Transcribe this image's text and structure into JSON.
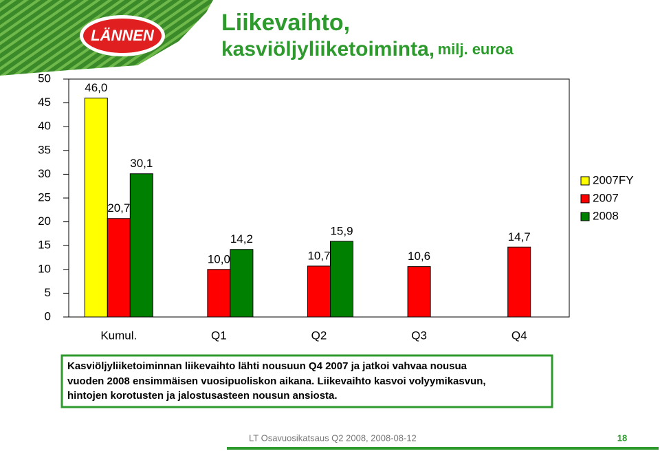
{
  "logo": "LÄNNEN",
  "chart_data": {
    "type": "bar",
    "title": "Liikevaihto,",
    "subtitle": "kasviöljyliiketoiminta,",
    "unit": "milj. euroa",
    "categories": [
      "Kumul.",
      "Q1",
      "Q2",
      "Q3",
      "Q4"
    ],
    "series": [
      {
        "name": "2007FY",
        "color": "#ffff00",
        "values": [
          46.0,
          null,
          null,
          null,
          null
        ],
        "value_labels": [
          "46,0",
          null,
          null,
          null,
          null
        ]
      },
      {
        "name": "2007",
        "color": "#ff0000",
        "values": [
          20.7,
          10.0,
          10.7,
          10.6,
          14.7
        ],
        "value_labels": [
          "20,7",
          "10,0",
          "10,7",
          "10,6",
          "14,7"
        ]
      },
      {
        "name": "2008",
        "color": "#008000",
        "values": [
          30.1,
          14.2,
          15.9,
          null,
          null
        ],
        "value_labels": [
          "30,1",
          "14,2",
          "15,9",
          null,
          null
        ]
      }
    ],
    "ylim": [
      0,
      50
    ],
    "yticks": [
      0,
      5,
      10,
      15,
      20,
      25,
      30,
      35,
      40,
      45,
      50
    ],
    "grid": false,
    "legend": "right"
  },
  "note": [
    "Kasviöljyliiketoiminnan liikevaihto lähti nousuun Q4 2007 ja jatkoi vahvaa nousua",
    "vuoden 2008 ensimmäisen vuosipuoliskon aikana. Liikevaihto kasvoi volyymikasvun,",
    "hintojen korotusten ja jalostusasteen nousun ansiosta."
  ],
  "footer": "LT Osavuosikatsaus Q2 2008, 2008-08-12",
  "page_number": "18"
}
